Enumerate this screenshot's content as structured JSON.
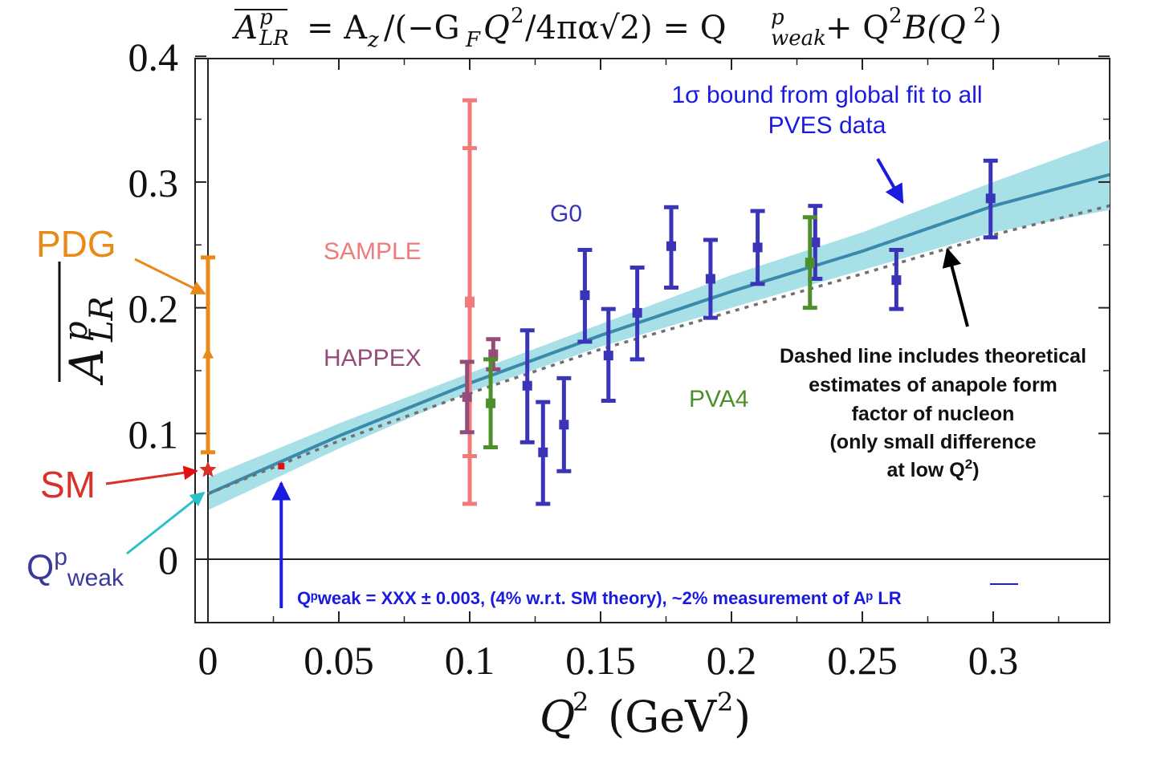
{
  "chart_data": {
    "type": "scatter",
    "title": "A_LR^p = A_z/(-G_F Q^2/4πα√2) = Q^p_weak + Q^2 B(Q^2)",
    "xlabel": "Q² (GeV²)",
    "ylabel": "A_LR^p",
    "xlim": [
      -0.01,
      0.35
    ],
    "ylim": [
      -0.05,
      0.4
    ],
    "x_ticks": [
      "0",
      "0.05",
      "0.1",
      "0.15",
      "0.2",
      "0.25",
      "0.3"
    ],
    "y_ticks": [
      "0",
      "0.1",
      "0.2",
      "0.3",
      "0.4"
    ],
    "grid": false,
    "series": [
      {
        "name": "PDG",
        "color": "#e8891a",
        "marker": "triangle",
        "points": [
          {
            "x": 0,
            "y": 0.163,
            "low": 0.085,
            "high": 0.24
          }
        ]
      },
      {
        "name": "SM",
        "color": "#d9302a",
        "marker": "star",
        "points": [
          {
            "x": 0,
            "y": 0.071
          }
        ]
      },
      {
        "name": "SAMPLE",
        "color": "#ef7b7b",
        "marker": "square",
        "points": [
          {
            "x": 0.1,
            "y": 0.204,
            "low": 0.044,
            "high": 0.365
          },
          {
            "x": 0.1,
            "y": 0.205,
            "low": 0.082,
            "high": 0.327
          }
        ]
      },
      {
        "name": "HAPPEX",
        "color": "#944d7a",
        "marker": "square",
        "points": [
          {
            "x": 0.099,
            "y": 0.129,
            "low": 0.101,
            "high": 0.157
          },
          {
            "x": 0.109,
            "y": 0.163,
            "low": 0.151,
            "high": 0.175
          }
        ]
      },
      {
        "name": "G0",
        "color": "#3a35b8",
        "marker": "square",
        "points": [
          {
            "x": 0.122,
            "y": 0.138,
            "low": 0.093,
            "high": 0.182
          },
          {
            "x": 0.128,
            "y": 0.085,
            "low": 0.044,
            "high": 0.125
          },
          {
            "x": 0.136,
            "y": 0.107,
            "low": 0.07,
            "high": 0.144
          },
          {
            "x": 0.144,
            "y": 0.21,
            "low": 0.173,
            "high": 0.246
          },
          {
            "x": 0.153,
            "y": 0.162,
            "low": 0.126,
            "high": 0.199
          },
          {
            "x": 0.164,
            "y": 0.196,
            "low": 0.159,
            "high": 0.232
          },
          {
            "x": 0.177,
            "y": 0.249,
            "low": 0.216,
            "high": 0.28
          },
          {
            "x": 0.192,
            "y": 0.223,
            "low": 0.192,
            "high": 0.254
          },
          {
            "x": 0.21,
            "y": 0.248,
            "low": 0.219,
            "high": 0.277
          },
          {
            "x": 0.232,
            "y": 0.252,
            "low": 0.223,
            "high": 0.281
          },
          {
            "x": 0.263,
            "y": 0.222,
            "low": 0.199,
            "high": 0.246
          },
          {
            "x": 0.299,
            "y": 0.287,
            "low": 0.256,
            "high": 0.317
          }
        ]
      },
      {
        "name": "PVA4",
        "color": "#4d8f2a",
        "marker": "square",
        "points": [
          {
            "x": 0.108,
            "y": 0.124,
            "low": 0.089,
            "high": 0.159
          },
          {
            "x": 0.23,
            "y": 0.236,
            "low": 0.2,
            "high": 0.272
          }
        ]
      }
    ],
    "fit": {
      "color": "#3a8bab",
      "band_color": "#a8e0e8",
      "x": [
        0,
        0.05,
        0.1,
        0.15,
        0.2,
        0.25,
        0.3,
        0.35
      ],
      "central": [
        0.052,
        0.098,
        0.14,
        0.178,
        0.213,
        0.245,
        0.281,
        0.309
      ],
      "band_low": [
        0.039,
        0.088,
        0.133,
        0.169,
        0.2,
        0.23,
        0.26,
        0.28
      ],
      "band_high": [
        0.065,
        0.108,
        0.148,
        0.187,
        0.226,
        0.26,
        0.3,
        0.338
      ]
    },
    "dashed": {
      "color": "#707070",
      "x": [
        0,
        0.05,
        0.1,
        0.15,
        0.2,
        0.25,
        0.3,
        0.35
      ],
      "y": [
        0.052,
        0.094,
        0.132,
        0.167,
        0.197,
        0.227,
        0.258,
        0.284
      ]
    },
    "qweak_point": {
      "x": 0.028,
      "y": 0.074,
      "color": "#e01010"
    },
    "annotations": {
      "fit_note": [
        "1σ bound from global fit to all",
        "PVES data"
      ],
      "dashed_note": [
        "Dashed line includes theoretical",
        "estimates of anapole form",
        "factor of nucleon",
        "(only small difference",
        "at low Q²)"
      ],
      "pdg": "PDG",
      "sm": "SM",
      "qweak_main": "Q",
      "qweak_sup": "p",
      "qweak_sub": "weak",
      "measurement": "Qᵖweak = XXX ± 0.003, (4% w.r.t. SM theory), ~2% measurement of Aᵖ LR",
      "label_sample": "SAMPLE",
      "label_happex": "HAPPEX",
      "label_g0": "G0",
      "label_pva4": "PVA4"
    }
  }
}
